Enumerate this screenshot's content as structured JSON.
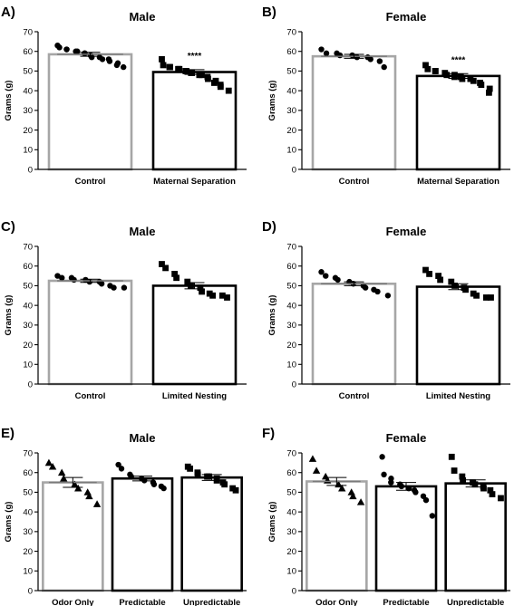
{
  "chart_data": [
    {
      "type": "bar",
      "panel": "A)",
      "title": "Male",
      "ylabel": "Grams (g)",
      "ylim": [
        0,
        70
      ],
      "yticks": [
        "0",
        "10",
        "20",
        "30",
        "40",
        "50",
        "60",
        "70"
      ],
      "categories": [
        "Control",
        "Maternal Separation"
      ],
      "values": [
        58.5,
        49.5
      ],
      "sem": [
        1.0,
        1.2
      ],
      "bar_colors": [
        "#a6a6a6",
        "#000000"
      ],
      "markers": [
        "circle",
        "square"
      ],
      "significance": [
        "",
        "****"
      ],
      "points": [
        [
          63,
          62,
          61,
          61,
          60,
          60,
          59,
          59,
          58,
          57,
          57,
          56,
          56,
          55,
          54,
          53,
          52
        ],
        [
          56,
          53,
          52,
          52,
          51,
          51,
          50,
          50,
          49,
          49,
          48,
          48,
          47,
          46,
          45,
          44,
          43,
          42,
          40
        ]
      ]
    },
    {
      "type": "bar",
      "panel": "B)",
      "title": "Female",
      "ylabel": "Grams (g)",
      "ylim": [
        0,
        70
      ],
      "yticks": [
        "0",
        "10",
        "20",
        "30",
        "40",
        "50",
        "60",
        "70"
      ],
      "categories": [
        "Control",
        "Maternal Separation"
      ],
      "values": [
        57.5,
        47.5
      ],
      "sem": [
        1.0,
        1.2
      ],
      "bar_colors": [
        "#a6a6a6",
        "#000000"
      ],
      "markers": [
        "circle",
        "square"
      ],
      "significance": [
        "",
        "****"
      ],
      "points": [
        [
          61,
          59,
          59,
          58,
          58,
          57,
          57,
          56,
          55,
          52
        ],
        [
          53,
          51,
          50,
          50,
          49,
          48,
          48,
          47,
          47,
          46,
          46,
          45,
          44,
          43,
          41,
          39
        ]
      ]
    },
    {
      "type": "bar",
      "panel": "C)",
      "title": "Male",
      "ylabel": "Grams (g)",
      "ylim": [
        0,
        70
      ],
      "yticks": [
        "0",
        "10",
        "20",
        "30",
        "40",
        "50",
        "60",
        "70"
      ],
      "categories": [
        "Control",
        "Limited Nesting"
      ],
      "values": [
        52.5,
        50.0
      ],
      "sem": [
        0.8,
        1.6
      ],
      "bar_colors": [
        "#a6a6a6",
        "#000000"
      ],
      "markers": [
        "circle",
        "square"
      ],
      "significance": [
        "",
        ""
      ],
      "points": [
        [
          55,
          54,
          54,
          53,
          53,
          52,
          52,
          51,
          50,
          49,
          49
        ],
        [
          61,
          59,
          56,
          54,
          52,
          50,
          49,
          47,
          46,
          45,
          45,
          44
        ]
      ]
    },
    {
      "type": "bar",
      "panel": "D)",
      "title": "Female",
      "ylabel": "Grams (g)",
      "ylim": [
        0,
        70
      ],
      "yticks": [
        "0",
        "10",
        "20",
        "30",
        "40",
        "50",
        "60",
        "70"
      ],
      "categories": [
        "Control",
        "Limited Nesting"
      ],
      "values": [
        51.0,
        49.5
      ],
      "sem": [
        1.0,
        1.5
      ],
      "bar_colors": [
        "#a6a6a6",
        "#000000"
      ],
      "markers": [
        "circle",
        "square"
      ],
      "significance": [
        "",
        ""
      ],
      "points": [
        [
          57,
          55,
          54,
          53,
          52,
          51,
          50,
          49,
          48,
          47,
          45
        ],
        [
          58,
          56,
          55,
          53,
          52,
          50,
          49,
          48,
          46,
          45,
          44,
          44
        ]
      ]
    },
    {
      "type": "bar",
      "panel": "E)",
      "title": "Male",
      "ylabel": "Grams (g)",
      "ylim": [
        0,
        70
      ],
      "yticks": [
        "0",
        "10",
        "20",
        "30",
        "40",
        "50",
        "60",
        "70"
      ],
      "categories": [
        "Odor Only",
        "Predictable",
        "Unpredictable"
      ],
      "values": [
        55.0,
        57.0,
        57.5
      ],
      "sem": [
        2.5,
        1.2,
        1.5
      ],
      "bar_colors": [
        "#a6a6a6",
        "#000000",
        "#000000"
      ],
      "markers": [
        "triangle",
        "circle",
        "square"
      ],
      "significance": [
        "",
        "",
        ""
      ],
      "points": [
        [
          65,
          63,
          60,
          57,
          54,
          52,
          50,
          48,
          44
        ],
        [
          64,
          62,
          59,
          58,
          57,
          56,
          55,
          54,
          53,
          52
        ],
        [
          63,
          62,
          60,
          59,
          58,
          58,
          57,
          56,
          55,
          54,
          52,
          51
        ]
      ]
    },
    {
      "type": "bar",
      "panel": "F)",
      "title": "Female",
      "ylabel": "Grams (g)",
      "ylim": [
        0,
        70
      ],
      "yticks": [
        "0",
        "10",
        "20",
        "30",
        "40",
        "50",
        "60",
        "70"
      ],
      "categories": [
        "Odor Only",
        "Predictable",
        "Unpredictable"
      ],
      "values": [
        55.5,
        53.0,
        54.5
      ],
      "sem": [
        2.0,
        2.0,
        1.8
      ],
      "bar_colors": [
        "#a6a6a6",
        "#000000",
        "#000000"
      ],
      "markers": [
        "triangle",
        "circle",
        "square"
      ],
      "significance": [
        "",
        "",
        ""
      ],
      "points": [
        [
          67,
          61,
          58,
          56,
          54,
          52,
          50,
          48,
          45
        ],
        [
          68,
          59,
          57,
          55,
          54,
          53,
          52,
          52,
          51,
          50,
          48,
          46,
          38
        ],
        [
          68,
          61,
          58,
          56,
          55,
          54,
          53,
          52,
          51,
          49,
          47
        ]
      ]
    }
  ]
}
